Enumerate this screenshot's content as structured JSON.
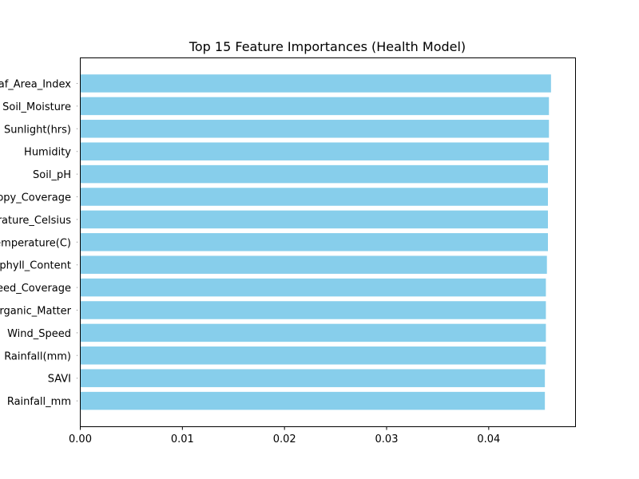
{
  "chart_data": {
    "type": "bar",
    "orientation": "horizontal",
    "title": "Top 15 Feature Importances (Health Model)",
    "xlabel": "",
    "ylabel": "",
    "xlim": [
      0,
      0.0485
    ],
    "xticks": [
      "0.00",
      "0.01",
      "0.02",
      "0.03",
      "0.04"
    ],
    "grid": false,
    "legend": "none",
    "bar_color": "#87ceeb",
    "categories": [
      "Leaf_Area_Index",
      "Soil_Moisture",
      "Sunlight(hrs)",
      "Humidity",
      "Soil_pH",
      "Canopy_Coverage",
      "Temperature_Celsius",
      "Temperature(C)",
      "Chlorophyll_Content",
      "Weed_Coverage",
      "Organic_Matter",
      "Wind_Speed",
      "Rainfall(mm)",
      "SAVI",
      "Rainfall_mm"
    ],
    "values": [
      0.0461,
      0.0459,
      0.0459,
      0.0459,
      0.0458,
      0.0458,
      0.0458,
      0.0458,
      0.0457,
      0.0456,
      0.0456,
      0.0456,
      0.0456,
      0.0455,
      0.0455
    ]
  }
}
